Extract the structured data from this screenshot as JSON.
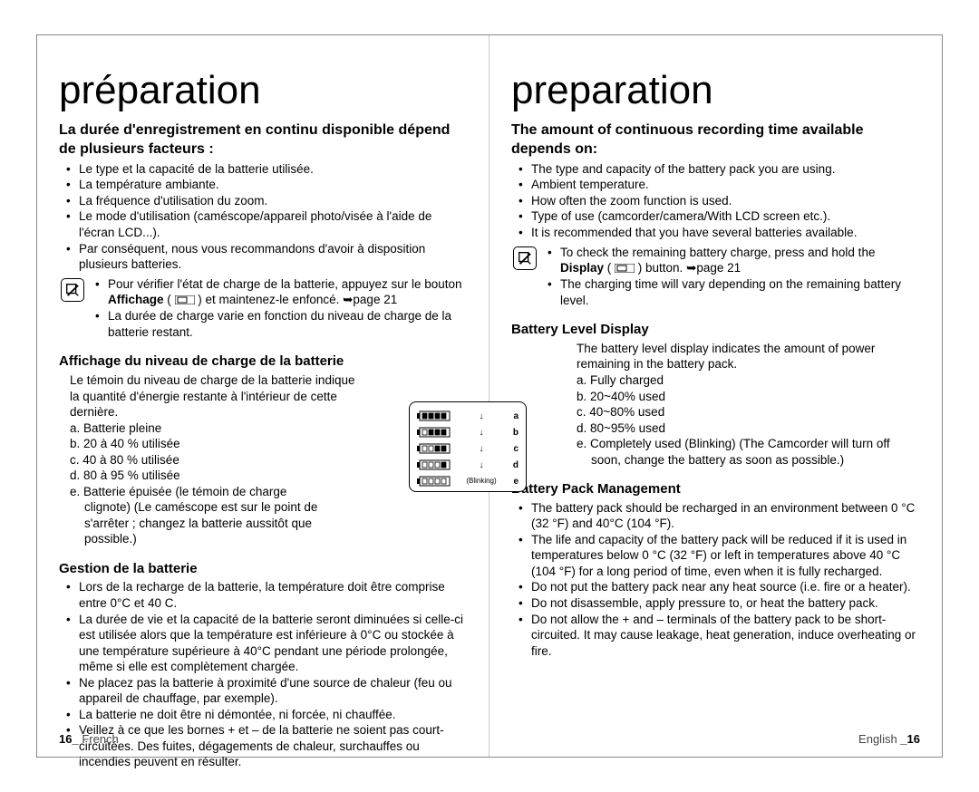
{
  "fr": {
    "title": "préparation",
    "h2": "La durée d'enregistrement en continu disponible dépend de plusieurs facteurs :",
    "factors": [
      "Le type et la capacité de la batterie utilisée.",
      "La température ambiante.",
      "La fréquence d'utilisation du zoom.",
      "Le mode d'utilisation (caméscope/appareil photo/visée à l'aide de l'écran LCD...).",
      "Par conséquent, nous vous recommandons d'avoir à disposition plusieurs batteries."
    ],
    "note1_a": "Pour vérifier l'état de charge de la batterie, appuyez sur le bouton ",
    "note1_bold": "Affichage",
    "note1_b": " ( ",
    "note1_c": " ) et maintenez-le enfoncé. ➥page 21",
    "note2": "La durée de charge varie en fonction du niveau de charge de la batterie restant.",
    "h3a": "Affichage du niveau de charge de la batterie",
    "desc_a": "Le témoin du niveau de charge de la batterie indique la quantité d'énergie restante à l'intérieur de cette dernière.",
    "states": [
      "a.  Batterie pleine",
      "b.  20 à 40 % utilisée",
      "c.  40 à 80 % utilisée",
      "d.  80 à 95 % utilisée",
      "e.  Batterie épuisée (le témoin de charge clignote) (Le caméscope est sur le point de s'arrêter ; changez la batterie aussitôt que possible.)"
    ],
    "h3b": "Gestion de la batterie",
    "mgmt": [
      "Lors de la recharge de la batterie, la température doit être comprise entre 0°C et 40 C.",
      "La durée de vie et la capacité de la batterie seront diminuées si celle-ci est utilisée alors que la température est inférieure à 0°C ou stockée à une température supérieure à 40°C pendant une période prolongée, même si elle est complètement chargée.",
      "Ne placez pas la batterie à proximité d'une source de chaleur (feu ou appareil de chauffage, par exemple).",
      "La batterie ne doit être ni démontée, ni forcée, ni chauffée.",
      "Veillez à ce que les bornes + et – de la batterie ne soient pas court-circuitées. Des fuites, dégagements de chaleur, surchauffes ou incendies peuvent en résulter."
    ],
    "footer_num": "16_",
    "footer_lang": " French"
  },
  "en": {
    "title": "preparation",
    "h2": "The amount of continuous recording time available depends on:",
    "factors": [
      "The type and capacity of the battery pack you are using.",
      "Ambient temperature.",
      "How often the zoom function is used.",
      "Type of use (camcorder/camera/With LCD screen etc.).",
      "It is recommended that you have several batteries available."
    ],
    "note1_a": "To check the remaining battery charge, press and hold the ",
    "note1_bold": "Display",
    "note1_b": " ( ",
    "note1_c": " ) button. ➥page 21",
    "note2": "The charging time will vary depending on the remaining battery level.",
    "h3a": "Battery Level Display",
    "desc_a": "The battery level display indicates the amount of power remaining in the battery pack.",
    "states": [
      "a.  Fully charged",
      "b.  20~40% used",
      "c.  40~80% used",
      "d.  80~95% used",
      "e.  Completely used (Blinking) (The Camcorder will turn off soon, change the battery as soon as possible.)"
    ],
    "h3b": "Battery Pack Management",
    "mgmt": [
      "The battery pack should be recharged in an environment between 0 °C (32 °F) and 40°C (104 °F).",
      "The life and capacity of the battery pack will be reduced if it is used in temperatures below 0 °C (32 °F) or left in temperatures above 40 °C (104 °F) for a long period of time, even when it is fully recharged.",
      "Do not put the battery pack near any heat source (i.e. fire or a heater).",
      "Do not disassemble, apply pressure to, or heat the battery pack.",
      "Do not allow the + and – terminals of the battery pack to be short-circuited. It may cause leakage, heat generation, induce overheating or fire."
    ],
    "footer_lang": "English ",
    "footer_num": "_16"
  },
  "diagram": {
    "labels": [
      "a",
      "b",
      "c",
      "d",
      "e"
    ],
    "blinking": "(Blinking)",
    "fills": [
      4,
      3,
      2,
      1,
      0
    ]
  }
}
